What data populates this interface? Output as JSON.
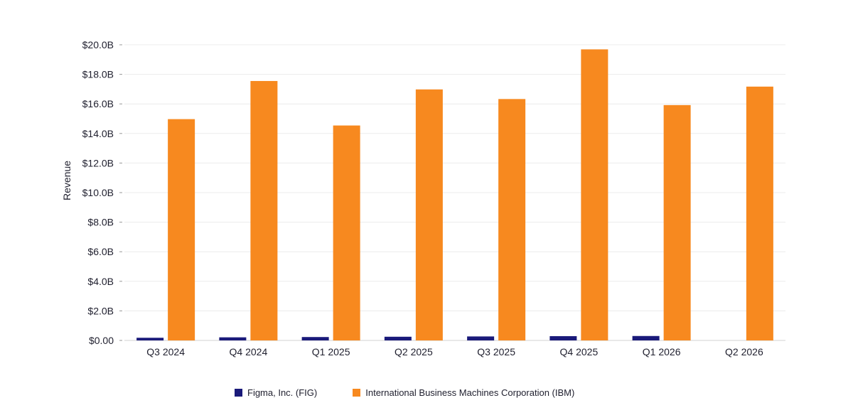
{
  "chart_data": {
    "type": "bar",
    "categories": [
      "Q3 2024",
      "Q4 2024",
      "Q1 2025",
      "Q2 2025",
      "Q3 2025",
      "Q4 2025",
      "Q1 2026",
      "Q2 2026"
    ],
    "series": [
      {
        "name": "Figma, Inc. (FIG)",
        "color": "#1a1a7a",
        "values": [
          0.18,
          0.21,
          0.23,
          0.25,
          0.27,
          0.29,
          0.3,
          null
        ]
      },
      {
        "name": "International Business Machines Corporation (IBM)",
        "color": "#f7891f",
        "values": [
          14.97,
          17.55,
          14.54,
          16.98,
          16.33,
          19.69,
          15.92,
          17.17
        ]
      }
    ],
    "ylabel": "Revenue",
    "xlabel": "",
    "ylim": [
      0,
      20
    ],
    "yticks": [
      "$0.00",
      "$2.0B",
      "$4.0B",
      "$6.0B",
      "$8.0B",
      "$10.0B",
      "$12.0B",
      "$14.0B",
      "$16.0B",
      "$18.0B",
      "$20.0B"
    ],
    "grid": true,
    "legend": "bottom"
  }
}
